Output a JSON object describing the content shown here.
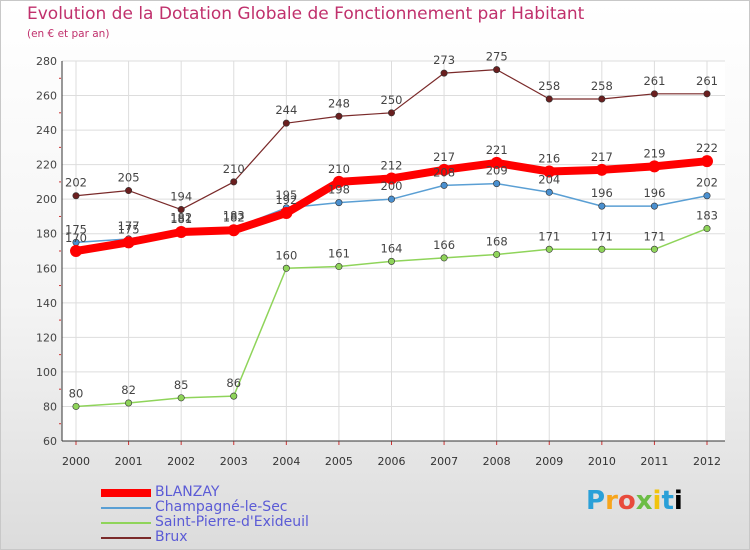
{
  "title": "Evolution de la Dotation Globale de Fonctionnement par Habitant",
  "subtitle": "(en € et par an)",
  "logo": [
    "P",
    "r",
    "o",
    "x",
    "i",
    "t",
    "i"
  ],
  "chart_data": {
    "type": "line",
    "title": "Evolution de la Dotation Globale de Fonctionnement par Habitant",
    "subtitle": "(en € et par an)",
    "xlabel": "",
    "ylabel": "",
    "x": [
      "2000",
      "2001",
      "2002",
      "2003",
      "2004",
      "2005",
      "2006",
      "2007",
      "2008",
      "2009",
      "2010",
      "2011",
      "2012"
    ],
    "ylim": [
      60,
      280
    ],
    "yticks": [
      60,
      80,
      100,
      120,
      140,
      160,
      180,
      200,
      220,
      240,
      260,
      280
    ],
    "grid": true,
    "legend_position": "bottom-left",
    "series": [
      {
        "name": "BLANZAY",
        "color": "#ff0000",
        "values": [
          170,
          175,
          181,
          182,
          192,
          210,
          212,
          217,
          221,
          216,
          217,
          219,
          222
        ]
      },
      {
        "name": "Champagné-le-Sec",
        "color": "#5a9fd4",
        "values": [
          175,
          177,
          182,
          183,
          195,
          198,
          200,
          208,
          209,
          204,
          196,
          196,
          202
        ]
      },
      {
        "name": "Saint-Pierre-d'Exideuil",
        "color": "#8fd45a",
        "values": [
          80,
          82,
          85,
          86,
          160,
          161,
          164,
          166,
          168,
          171,
          171,
          171,
          183
        ]
      },
      {
        "name": "Brux",
        "color": "#7a2a2a",
        "values": [
          202,
          205,
          194,
          210,
          244,
          248,
          250,
          273,
          275,
          258,
          258,
          261,
          261
        ]
      }
    ]
  }
}
